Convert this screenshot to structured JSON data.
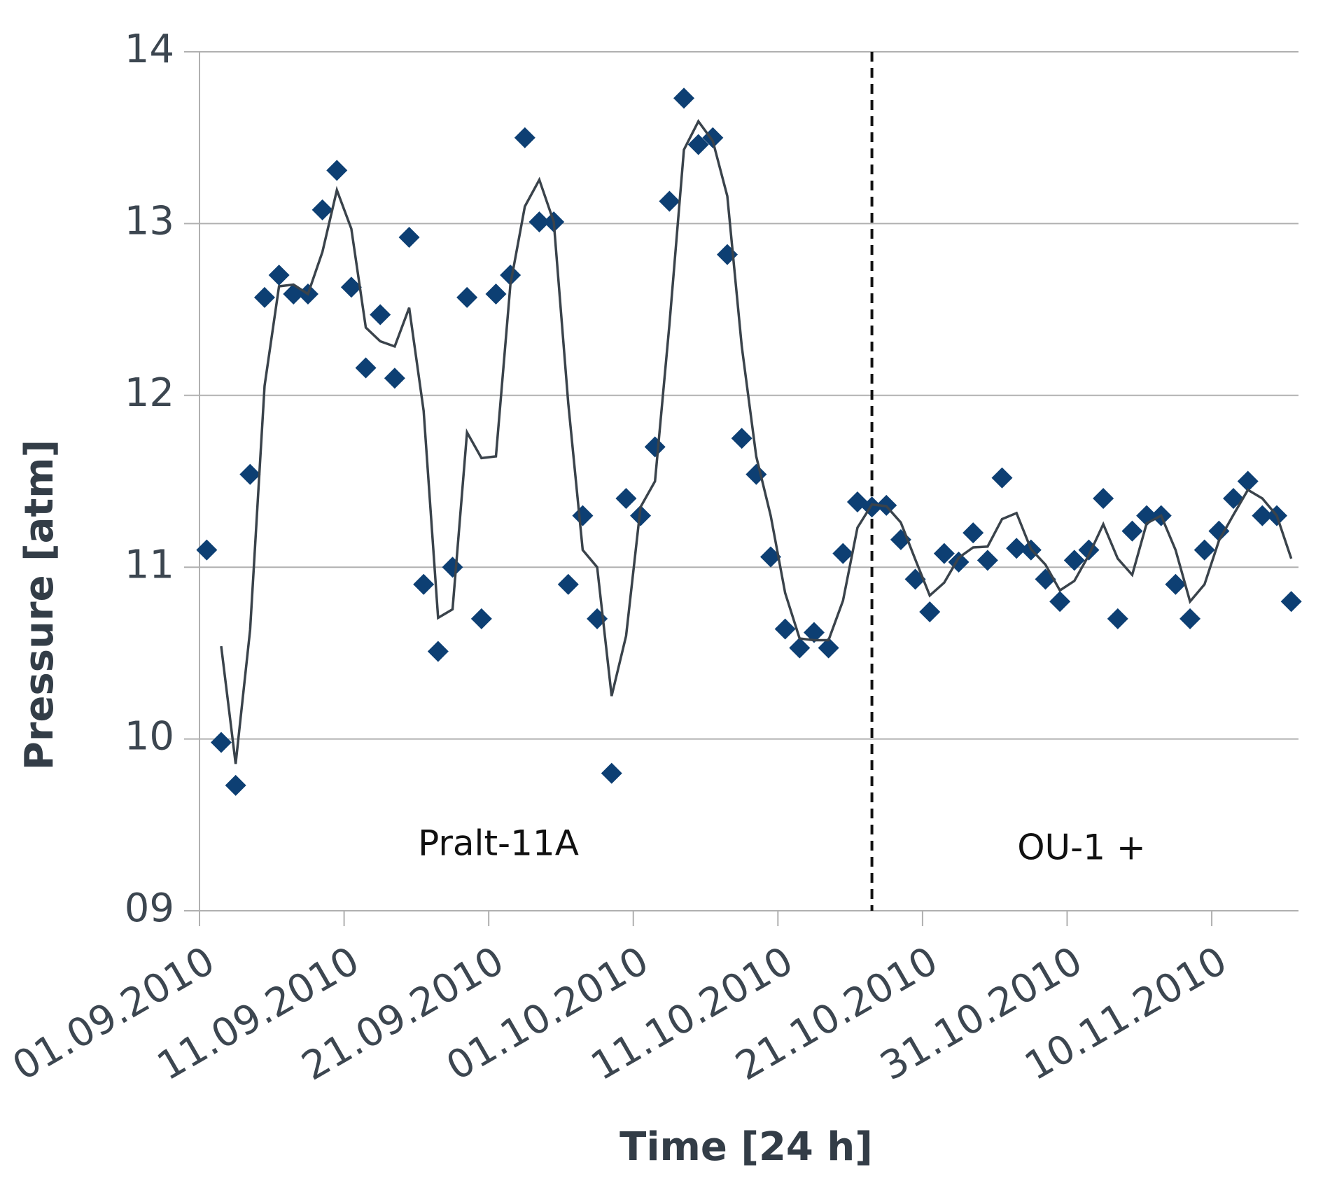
{
  "chart_data": {
    "type": "line",
    "y_label": "Pressure [atm]",
    "x_label": "Time [24 h]",
    "annotations": [
      "Pralt-11A",
      "OU-1 +"
    ],
    "divider_x": "17.10.2010",
    "x": [
      "01.09.2010",
      "02.09.2010",
      "03.09.2010",
      "04.09.2010",
      "05.09.2010",
      "06.09.2010",
      "07.09.2010",
      "08.09.2010",
      "09.09.2010",
      "10.09.2010",
      "11.09.2010",
      "12.09.2010",
      "13.09.2010",
      "14.09.2010",
      "15.09.2010",
      "16.09.2010",
      "17.09.2010",
      "18.09.2010",
      "19.09.2010",
      "20.09.2010",
      "21.09.2010",
      "22.09.2010",
      "23.09.2010",
      "24.09.2010",
      "25.09.2010",
      "26.09.2010",
      "27.09.2010",
      "28.09.2010",
      "29.09.2010",
      "30.09.2010",
      "01.10.2010",
      "02.10.2010",
      "03.10.2010",
      "04.10.2010",
      "05.10.2010",
      "06.10.2010",
      "07.10.2010",
      "08.10.2010",
      "09.10.2010",
      "10.10.2010",
      "11.10.2010",
      "12.10.2010",
      "13.10.2010",
      "14.10.2010",
      "15.10.2010",
      "16.10.2010",
      "17.10.2010",
      "18.10.2010",
      "19.10.2010",
      "20.10.2010",
      "21.10.2010",
      "22.10.2010",
      "23.10.2010",
      "24.10.2010",
      "25.10.2010",
      "26.10.2010",
      "27.10.2010",
      "28.10.2010",
      "29.10.2010",
      "30.10.2010",
      "31.10.2010",
      "01.11.2010",
      "02.11.2010",
      "03.11.2010",
      "04.11.2010",
      "05.11.2010",
      "06.11.2010",
      "07.11.2010",
      "08.11.2010",
      "09.11.2010",
      "10.11.2010",
      "11.11.2010",
      "12.11.2010",
      "13.11.2010",
      "14.11.2010",
      "15.11.2010"
    ],
    "series": [
      {
        "style": "markers",
        "color": "#0d3f73",
        "values": [
          11.1,
          9.98,
          9.73,
          11.54,
          12.57,
          12.7,
          12.59,
          12.59,
          13.08,
          13.31,
          12.63,
          12.16,
          12.47,
          12.1,
          12.92,
          10.9,
          10.51,
          11.0,
          12.57,
          10.7,
          12.59,
          12.7,
          13.5,
          13.01,
          13.01,
          10.9,
          11.3,
          10.7,
          9.8,
          11.4,
          11.3,
          11.7,
          13.13,
          13.73,
          13.46,
          13.5,
          12.82,
          11.75,
          11.54,
          11.06,
          10.64,
          10.53,
          10.62,
          10.53,
          11.08,
          11.38,
          11.35,
          11.36,
          11.16,
          10.93,
          10.74,
          11.08,
          11.03,
          11.2,
          11.04,
          11.52,
          11.11,
          11.1,
          10.93,
          10.8,
          11.04,
          11.1,
          11.4,
          10.7,
          11.21,
          11.3,
          11.3,
          10.9,
          10.7,
          11.1,
          11.21,
          11.4,
          11.5,
          11.3,
          11.3,
          10.8
        ]
      },
      {
        "style": "line",
        "color": "#3a434b",
        "values": [
          null,
          10.54,
          9.855,
          10.635,
          12.055,
          12.635,
          12.645,
          12.59,
          12.835,
          13.195,
          12.97,
          12.395,
          12.315,
          12.285,
          12.51,
          11.91,
          10.705,
          10.755,
          11.785,
          11.635,
          11.645,
          12.645,
          13.1,
          13.255,
          13.01,
          11.955,
          11.1,
          11.0,
          10.25,
          10.6,
          11.35,
          11.5,
          12.415,
          13.43,
          13.595,
          13.48,
          13.16,
          12.285,
          11.645,
          11.3,
          10.85,
          10.585,
          10.575,
          10.575,
          10.805,
          11.23,
          11.365,
          11.355,
          11.26,
          11.045,
          10.835,
          10.91,
          11.055,
          11.115,
          11.12,
          11.28,
          11.315,
          11.105,
          11.015,
          10.865,
          10.92,
          11.07,
          11.25,
          11.05,
          10.955,
          11.255,
          11.3,
          11.1,
          10.8,
          10.9,
          11.155,
          11.305,
          11.45,
          11.4,
          11.3,
          11.05
        ]
      }
    ],
    "xlim": [
      "01.09.2010",
      "16.11.2010"
    ],
    "xticks": [
      "01.09.2010",
      "11.09.2010",
      "21.09.2010",
      "01.10.2010",
      "11.10.2010",
      "21.10.2010",
      "31.10.2010",
      "10.11.2010"
    ],
    "ylim": [
      9,
      14
    ],
    "yticks": [
      {
        "value": 9,
        "label": "09"
      },
      10,
      11,
      12,
      13,
      14
    ],
    "grid": true
  }
}
